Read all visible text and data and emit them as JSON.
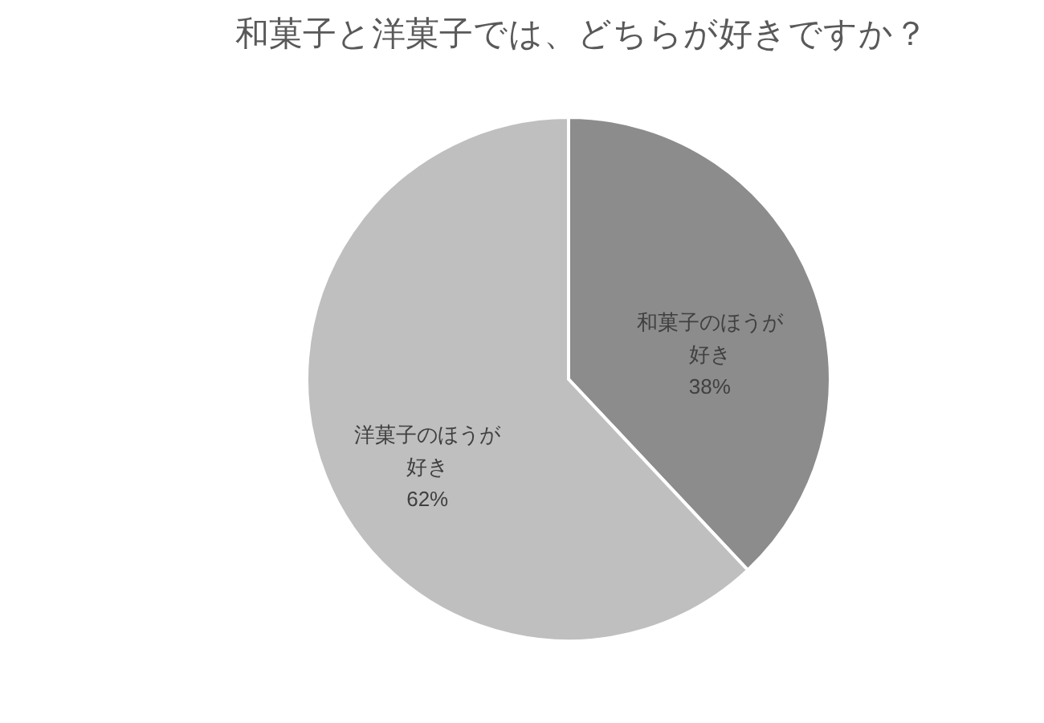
{
  "chart_data": {
    "type": "pie",
    "title": "和菓子と洋菓子では、どちらが好きですか？",
    "categories": [
      "和菓子のほうが好き",
      "洋菓子のほうが好き"
    ],
    "values": [
      38,
      62
    ],
    "colors": [
      "#8c8c8c",
      "#bfbfbf"
    ],
    "value_labels": [
      "38%",
      "62%"
    ]
  }
}
